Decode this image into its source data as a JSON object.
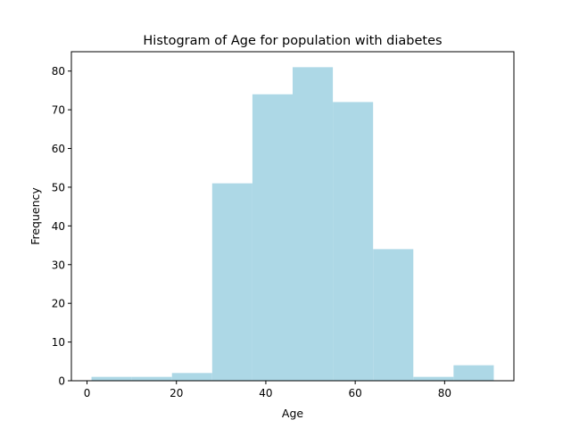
{
  "chart_data": {
    "type": "bar",
    "title": "Histogram of Age for population with diabetes",
    "xlabel": "Age",
    "ylabel": "Frequency",
    "bin_edges": [
      1,
      10,
      19,
      28,
      37,
      46,
      55,
      64,
      73,
      82,
      91
    ],
    "values": [
      1,
      1,
      2,
      51,
      74,
      81,
      72,
      34,
      1,
      4
    ],
    "xlim": [
      -3.5,
      95.5
    ],
    "ylim": [
      0,
      85
    ],
    "xticks": [
      0,
      20,
      40,
      60,
      80
    ],
    "yticks": [
      0,
      10,
      20,
      30,
      40,
      50,
      60,
      70,
      80
    ],
    "bar_color": "#add8e6",
    "grid": false
  }
}
